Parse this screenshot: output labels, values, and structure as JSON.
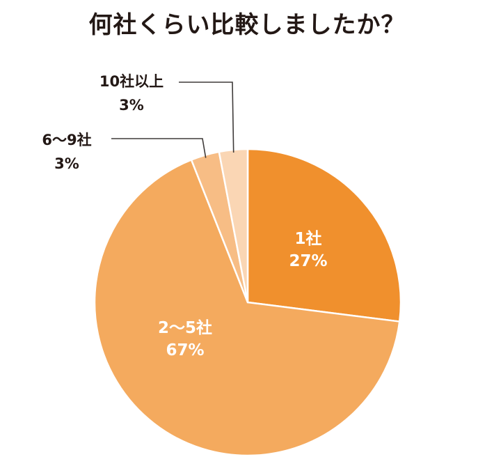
{
  "chart_data": {
    "type": "pie",
    "title": "何社くらい比較しましたか？",
    "slices": [
      {
        "label": "1社",
        "value": 27,
        "value_label": "27%",
        "color": "#f0902d"
      },
      {
        "label": "2〜5社",
        "value": 67,
        "value_label": "67%",
        "color": "#f4aa5e"
      },
      {
        "label": "6〜9社",
        "value": 3,
        "value_label": "3%",
        "color": "#f7bd85"
      },
      {
        "label": "10社以上",
        "value": 3,
        "value_label": "3%",
        "color": "#fad6b4"
      }
    ],
    "start_angle_deg": 0,
    "direction": "clockwise"
  }
}
